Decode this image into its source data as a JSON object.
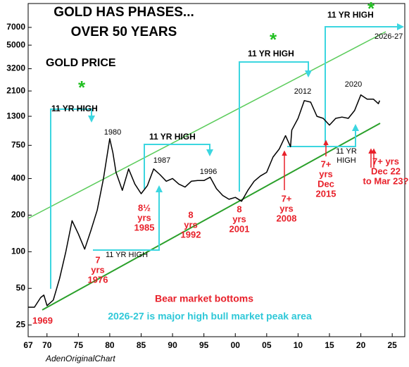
{
  "chart_data": {
    "type": "line",
    "title": "GOLD HAS PHASES...",
    "subtitle": "OVER 50 YEARS",
    "ylabel": "GOLD PRICE",
    "source": "AdenOriginalChart",
    "log_scale": true,
    "xlim": [
      1967,
      2027
    ],
    "ylim": [
      20,
      11000
    ],
    "xticks": [
      {
        "value": 1967,
        "label": "67"
      },
      {
        "value": 1970,
        "label": "70"
      },
      {
        "value": 1975,
        "label": "75"
      },
      {
        "value": 1980,
        "label": "80"
      },
      {
        "value": 1985,
        "label": "85"
      },
      {
        "value": 1990,
        "label": "90"
      },
      {
        "value": 1995,
        "label": "95"
      },
      {
        "value": 2000,
        "label": "00"
      },
      {
        "value": 2005,
        "label": "05"
      },
      {
        "value": 2010,
        "label": "10"
      },
      {
        "value": 2015,
        "label": "15"
      },
      {
        "value": 2020,
        "label": "20"
      },
      {
        "value": 2025,
        "label": "25"
      }
    ],
    "yticks": [
      25,
      50,
      100,
      200,
      400,
      750,
      1300,
      2100,
      3200,
      5000,
      7000
    ],
    "series": [
      {
        "name": "Gold price",
        "color": "#000000",
        "x": [
          1967,
          1968,
          1969,
          1969.5,
          1970,
          1971,
          1972,
          1973,
          1974,
          1975,
          1976,
          1977,
          1978,
          1979,
          1980,
          1980.5,
          1981,
          1982,
          1983,
          1984,
          1985,
          1986,
          1987,
          1988,
          1989,
          1990,
          1991,
          1992,
          1993,
          1994,
          1995,
          1996,
          1997,
          1998,
          1999,
          2000,
          2001,
          2002,
          2003,
          2004,
          2005,
          2006,
          2007,
          2008,
          2008.8,
          2009,
          2010,
          2011,
          2012,
          2013,
          2014,
          2015,
          2016,
          2017,
          2018,
          2019,
          2020,
          2021,
          2022,
          2022.8,
          2023
        ],
        "values": [
          35,
          35,
          42,
          44,
          36,
          40,
          60,
          100,
          180,
          140,
          105,
          150,
          220,
          400,
          850,
          650,
          450,
          320,
          480,
          360,
          300,
          350,
          480,
          430,
          380,
          400,
          360,
          340,
          380,
          385,
          385,
          410,
          330,
          290,
          270,
          280,
          260,
          320,
          380,
          420,
          450,
          600,
          700,
          900,
          730,
          1000,
          1250,
          1750,
          1700,
          1300,
          1250,
          1100,
          1250,
          1280,
          1250,
          1450,
          1950,
          1800,
          1800,
          1650,
          1750
        ]
      }
    ],
    "annotations": [
      {
        "lines": [
          "11 YR HIGH"
        ],
        "color": "#000000"
      },
      {
        "lines": [
          "11 YR HIGH"
        ],
        "color": "#000000"
      },
      {
        "lines": [
          "11 YR HIGH"
        ],
        "color": "#000000"
      },
      {
        "lines": [
          "11 YR HIGH"
        ],
        "color": "#000000"
      },
      {
        "lines": [
          "11 YR HIGH"
        ],
        "color": "#000000"
      },
      {
        "lines": [
          "11 YR",
          "HIGH"
        ],
        "color": "#000000"
      },
      {
        "lines": [
          "2026-27"
        ],
        "color": "#000000"
      },
      {
        "lines": [
          "1980"
        ],
        "color": "#000000"
      },
      {
        "lines": [
          "1987"
        ],
        "color": "#000000"
      },
      {
        "lines": [
          "1996"
        ],
        "color": "#000000"
      },
      {
        "lines": [
          "2012"
        ],
        "color": "#000000"
      },
      {
        "lines": [
          "2020"
        ],
        "color": "#000000"
      },
      {
        "lines": [
          "1969"
        ],
        "color": "#e8202a"
      },
      {
        "lines": [
          "7",
          "yrs",
          "1976"
        ],
        "color": "#e8202a"
      },
      {
        "lines": [
          "8½",
          "yrs",
          "1985"
        ],
        "color": "#e8202a"
      },
      {
        "lines": [
          "8",
          "yrs",
          "1992"
        ],
        "color": "#e8202a"
      },
      {
        "lines": [
          "8",
          "yrs",
          "2001"
        ],
        "color": "#e8202a"
      },
      {
        "lines": [
          "7+",
          "yrs",
          "2008"
        ],
        "color": "#e8202a"
      },
      {
        "lines": [
          "7+",
          "yrs",
          "Dec",
          "2015"
        ],
        "color": "#e8202a"
      },
      {
        "lines": [
          "7+ yrs",
          "Dec 22",
          "to Mar 23?"
        ],
        "color": "#e8202a"
      },
      {
        "lines": [
          "*"
        ],
        "color": "#22c022"
      },
      {
        "lines": [
          "*"
        ],
        "color": "#22c022"
      },
      {
        "lines": [
          "*"
        ],
        "color": "#22c022"
      },
      {
        "lines": [
          "Bear market bottoms"
        ],
        "color": "#e8202a"
      },
      {
        "lines": [
          "2026-27 is major high bull market peak area"
        ],
        "color": "#2ec8d8"
      }
    ]
  }
}
